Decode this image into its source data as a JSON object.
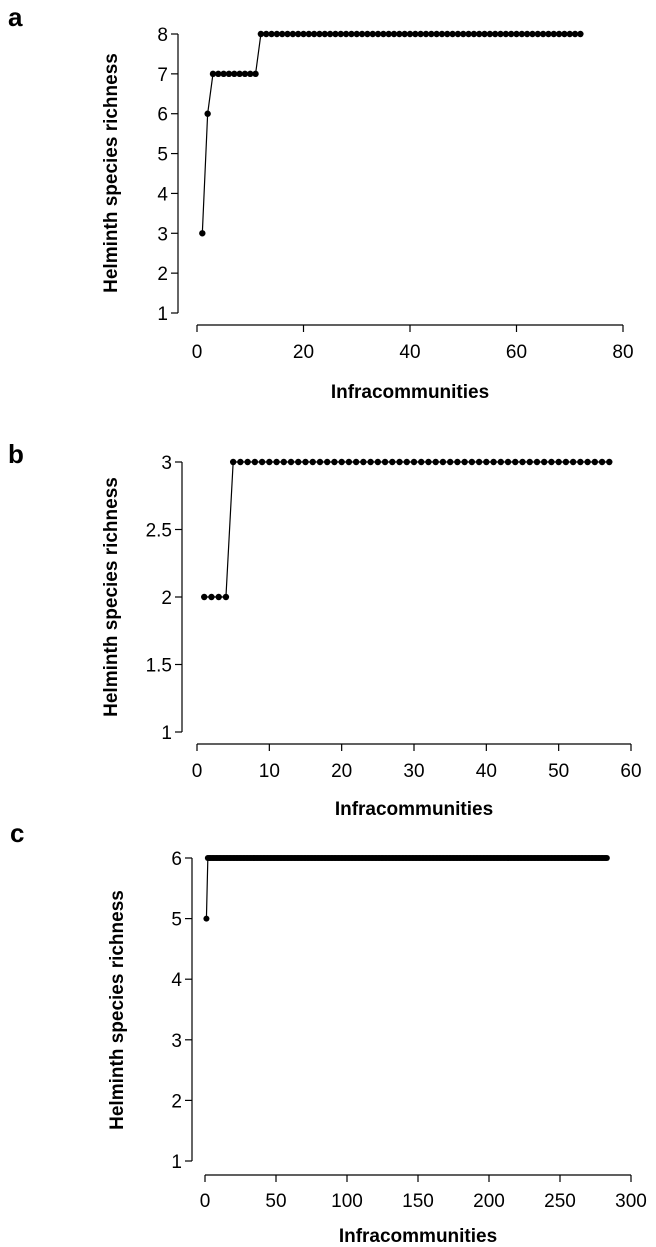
{
  "chart_data": [
    {
      "panel": "a",
      "type": "line",
      "xlabel": "Infracommunities",
      "ylabel": "Helminth species richness",
      "xlim": [
        0,
        80
      ],
      "ylim": [
        1,
        8
      ],
      "xticks": [
        0,
        20,
        40,
        60,
        80
      ],
      "yticks": [
        1,
        2,
        3,
        4,
        5,
        6,
        7,
        8
      ],
      "grid": false,
      "segments": [
        {
          "x": [
            1,
            1
          ],
          "y": 3
        },
        {
          "x": [
            2,
            2
          ],
          "y": 6
        },
        {
          "x": [
            3,
            11
          ],
          "y": 7
        },
        {
          "x": [
            12,
            72
          ],
          "y": 8
        }
      ]
    },
    {
      "panel": "b",
      "type": "line",
      "xlabel": "Infracommunities",
      "ylabel": "Helminth species richness",
      "xlim": [
        0,
        60
      ],
      "ylim": [
        1,
        3
      ],
      "xticks": [
        0,
        10,
        20,
        30,
        40,
        50,
        60
      ],
      "yticks": [
        1,
        1.5,
        2,
        2.5,
        3
      ],
      "grid": false,
      "segments": [
        {
          "x": [
            1,
            4
          ],
          "y": 2
        },
        {
          "x": [
            5,
            57
          ],
          "y": 3
        }
      ]
    },
    {
      "panel": "c",
      "type": "line",
      "xlabel": "Infracommunities",
      "ylabel": "Helminth species richness",
      "xlim": [
        0,
        300
      ],
      "ylim": [
        1,
        6
      ],
      "xticks": [
        0,
        50,
        100,
        150,
        200,
        250,
        300
      ],
      "yticks": [
        1,
        2,
        3,
        4,
        5,
        6
      ],
      "grid": false,
      "segments": [
        {
          "x": [
            1,
            1
          ],
          "y": 5
        },
        {
          "x": [
            2,
            283
          ],
          "y": 6
        }
      ]
    }
  ]
}
